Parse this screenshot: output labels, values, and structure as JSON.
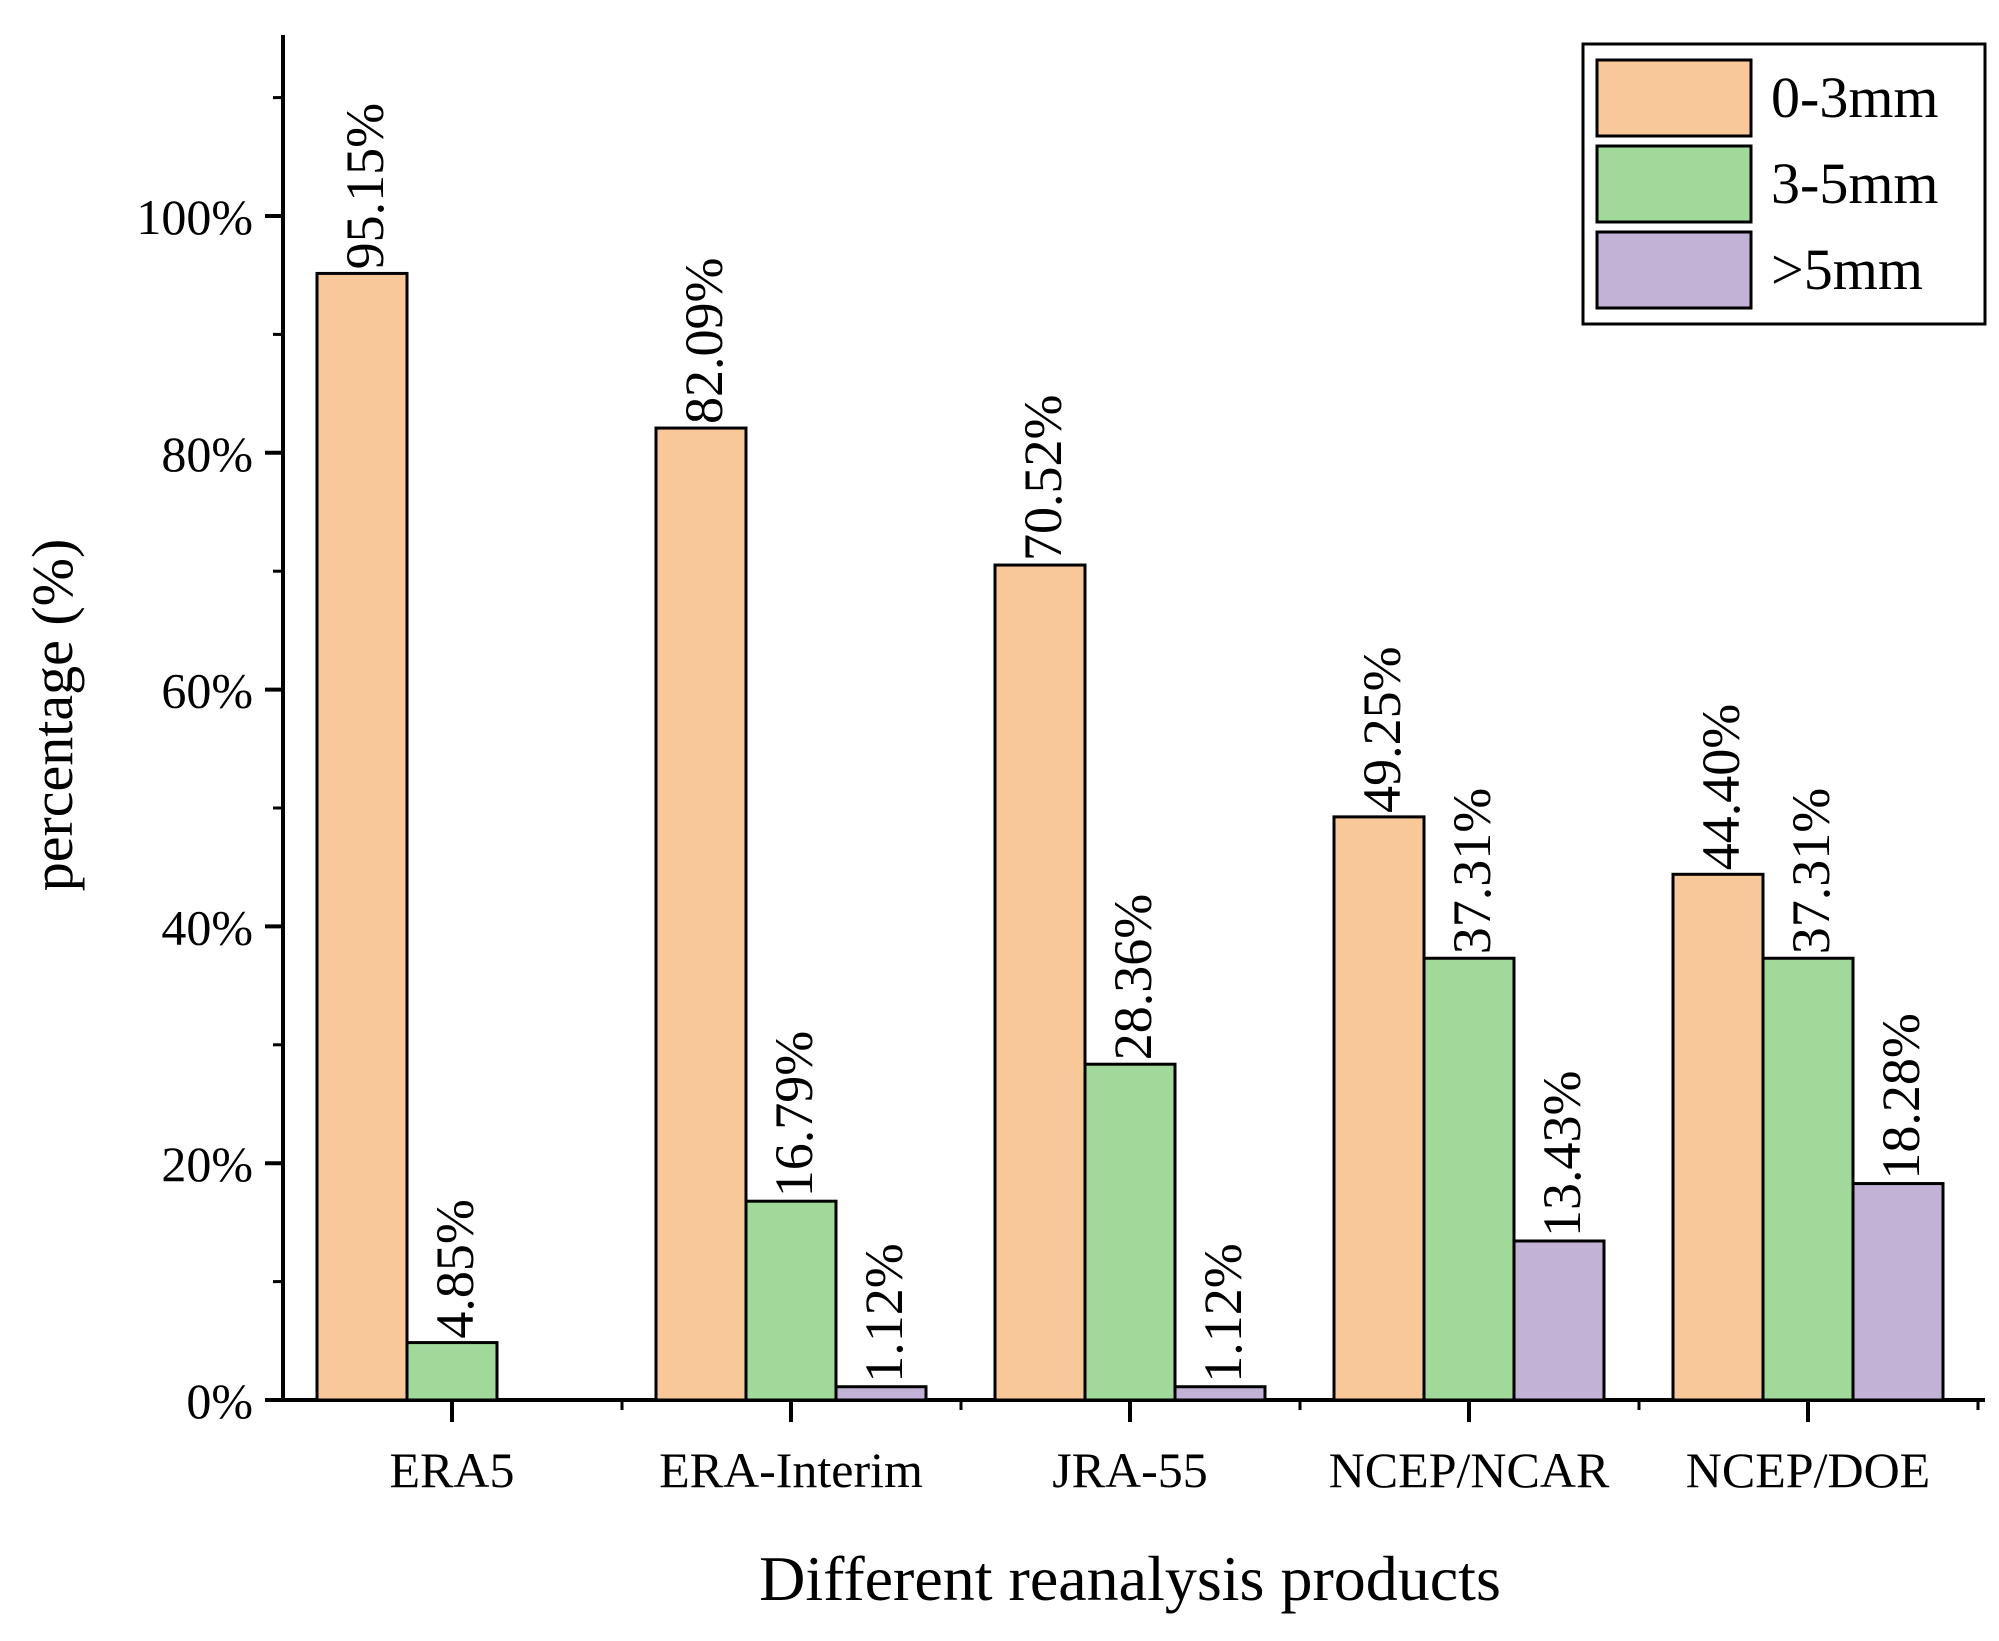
{
  "chart_data": {
    "type": "bar",
    "title": "",
    "xlabel": "Different reanalysis products",
    "ylabel": "percentage (%)",
    "categories": [
      "ERA5",
      "ERA-Interim",
      "JRA-55",
      "NCEP/NCAR",
      "NCEP/DOE"
    ],
    "ylim": [
      0,
      115
    ],
    "yticks": [
      0,
      20,
      40,
      60,
      80,
      100
    ],
    "ytick_labels": [
      "0%",
      "20%",
      "40%",
      "60%",
      "80%",
      "100%"
    ],
    "series": [
      {
        "name": "0-3mm",
        "color": "#F9C898",
        "values": [
          95.15,
          82.09,
          70.52,
          49.25,
          44.4
        ],
        "labels": [
          "95.15%",
          "82.09%",
          "70.52%",
          "49.25%",
          "44.40%"
        ]
      },
      {
        "name": "3-5mm",
        "color": "#A1D99B",
        "values": [
          4.85,
          16.79,
          28.36,
          37.31,
          37.31
        ],
        "labels": [
          "4.85%",
          "16.79%",
          "28.36%",
          "37.31%",
          "37.31%"
        ]
      },
      {
        "name": ">5mm",
        "color": "#C2B2D6",
        "values": [
          null,
          1.12,
          1.12,
          13.43,
          18.28
        ],
        "labels": [
          null,
          "1.12%",
          "1.12%",
          "13.43%",
          "18.28%"
        ]
      }
    ],
    "legend": {
      "position": "top-right",
      "entries": [
        "0-3mm",
        "3-5mm",
        ">5mm"
      ]
    }
  }
}
